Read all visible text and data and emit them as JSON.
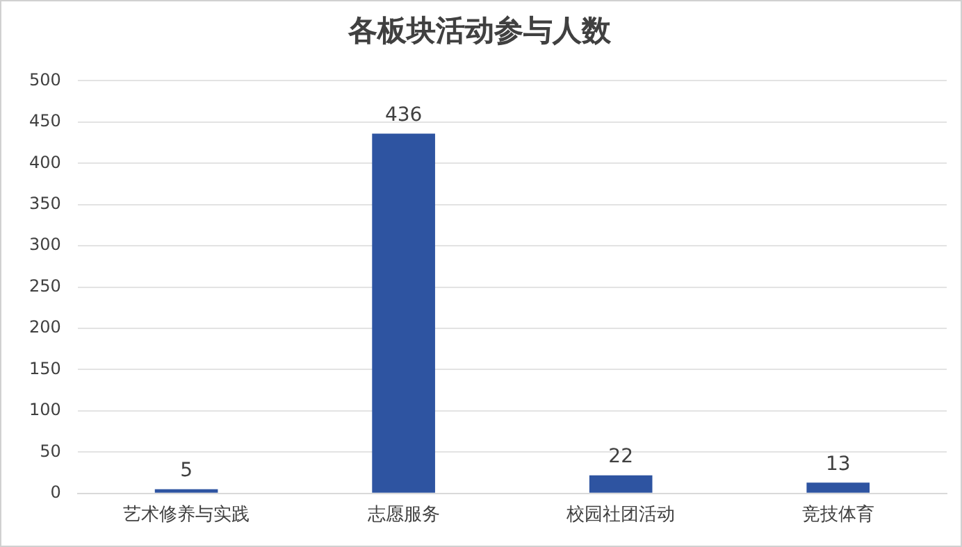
{
  "chart_data": {
    "type": "bar",
    "title": "各板块活动参与人数",
    "categories": [
      "艺术修养与实践",
      "志愿服务",
      "校园社团活动",
      "竞技体育"
    ],
    "values": [
      5,
      436,
      22,
      13
    ],
    "color": "#2e54a1",
    "ylim": [
      0,
      500
    ],
    "yticks": [
      0,
      50,
      100,
      150,
      200,
      250,
      300,
      350,
      400,
      450,
      500
    ],
    "grid": "y",
    "data_labels": true
  }
}
